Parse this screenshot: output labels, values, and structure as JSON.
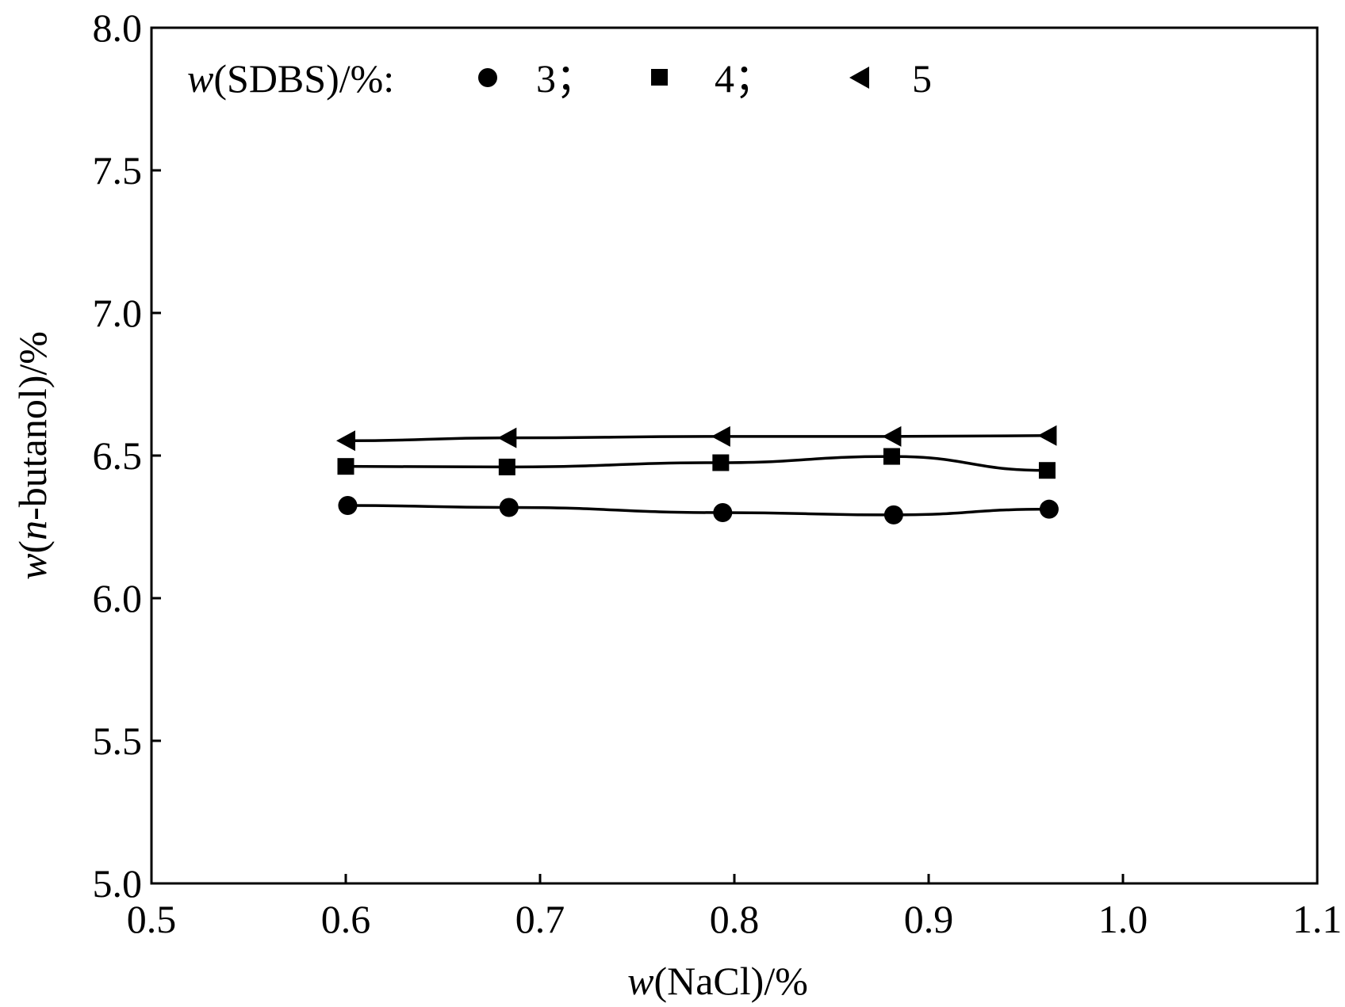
{
  "chart_data": {
    "type": "line",
    "xlabel": {
      "var": "w",
      "rest": "(NaCl)/%"
    },
    "ylabel": {
      "var": "w",
      "open": "(",
      "ital": "n",
      "rest": "-butanol)/%"
    },
    "xlim": [
      0.5,
      1.1
    ],
    "ylim": [
      5.0,
      8.0
    ],
    "x_ticks": [
      "0.5",
      "0.6",
      "0.7",
      "0.8",
      "0.9",
      "1.0",
      "1.1"
    ],
    "y_ticks": [
      "5.0",
      "5.5",
      "6.0",
      "6.5",
      "7.0",
      "7.5",
      "8.0"
    ],
    "grid": false,
    "legend": {
      "position": "top-left",
      "prefix_var": "w",
      "prefix_rest": "(SDBS)/%:",
      "entries": [
        "3；",
        "4；",
        "5"
      ]
    },
    "series": [
      {
        "name": "3",
        "marker": "circle",
        "x": [
          0.601,
          0.684,
          0.794,
          0.882,
          0.962
        ],
        "y": [
          6.325,
          6.318,
          6.3,
          6.292,
          6.312
        ]
      },
      {
        "name": "4",
        "marker": "square",
        "x": [
          0.6,
          0.683,
          0.793,
          0.881,
          0.961
        ],
        "y": [
          6.462,
          6.46,
          6.475,
          6.497,
          6.448
        ]
      },
      {
        "name": "5",
        "marker": "triangle-left",
        "x": [
          0.6,
          0.683,
          0.793,
          0.881,
          0.961
        ],
        "y": [
          6.552,
          6.562,
          6.567,
          6.567,
          6.57
        ]
      }
    ]
  }
}
